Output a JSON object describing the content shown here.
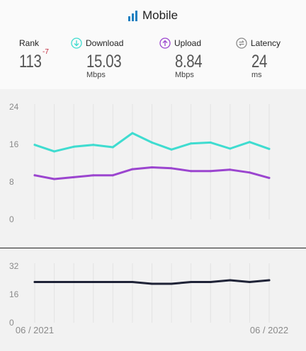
{
  "header": {
    "title": "Mobile",
    "stats": {
      "rank": {
        "label": "Rank",
        "value": "113",
        "delta": "-7"
      },
      "download": {
        "label": "Download",
        "value": "15.03",
        "unit": "Mbps"
      },
      "upload": {
        "label": "Upload",
        "value": "8.84",
        "unit": "Mbps"
      },
      "latency": {
        "label": "Latency",
        "value": "24",
        "unit": "ms"
      }
    }
  },
  "colors": {
    "download": "#3fdcd0",
    "upload": "#9b45cf",
    "latency": "#1f2337",
    "grid": "#e3e3e3",
    "axis_text": "#8a8a8a"
  },
  "chart_data": [
    {
      "type": "line",
      "x": [
        "06 / 2021",
        "07 / 2021",
        "08 / 2021",
        "09 / 2021",
        "10 / 2021",
        "11 / 2021",
        "12 / 2021",
        "01 / 2022",
        "02 / 2022",
        "03 / 2022",
        "04 / 2022",
        "05 / 2022",
        "06 / 2022"
      ],
      "yticks": [
        "24",
        "16",
        "8",
        "0"
      ],
      "ylim": [
        0,
        24
      ],
      "grid": true,
      "series": [
        {
          "key": "download",
          "values": [
            15.9,
            14.5,
            15.5,
            15.9,
            15.4,
            18.4,
            16.4,
            14.9,
            16.2,
            16.4,
            15.1,
            16.5,
            15.03
          ]
        },
        {
          "key": "upload",
          "values": [
            9.4,
            8.6,
            9.0,
            9.4,
            9.4,
            10.7,
            11.1,
            10.9,
            10.3,
            10.3,
            10.6,
            10.0,
            8.84
          ]
        }
      ]
    },
    {
      "type": "line",
      "x": [
        "06 / 2021",
        "07 / 2021",
        "08 / 2021",
        "09 / 2021",
        "10 / 2021",
        "11 / 2021",
        "12 / 2021",
        "01 / 2022",
        "02 / 2022",
        "03 / 2022",
        "04 / 2022",
        "05 / 2022",
        "06 / 2022"
      ],
      "xtick_labels": [
        "06 / 2021",
        "06 / 2022"
      ],
      "yticks": [
        "32",
        "16",
        "0"
      ],
      "ylim": [
        0,
        32
      ],
      "grid": true,
      "series": [
        {
          "key": "latency",
          "values": [
            23,
            23,
            23,
            23,
            23,
            23,
            22,
            22,
            23,
            23,
            24,
            23,
            24
          ]
        }
      ]
    }
  ]
}
